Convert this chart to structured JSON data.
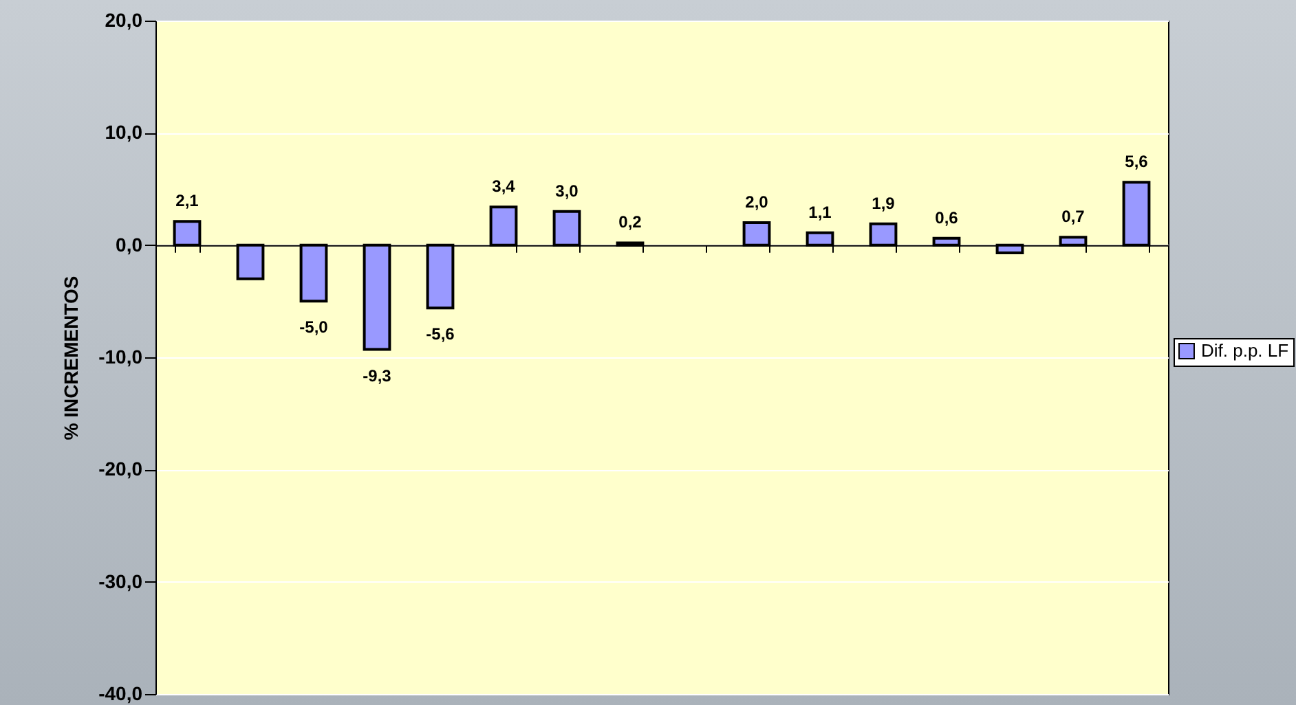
{
  "chart_data": {
    "type": "bar",
    "ylabel": "% INCREMENTOS",
    "categories": [
      null,
      null,
      null,
      null,
      null,
      null,
      null,
      null,
      null,
      null,
      null,
      null,
      null,
      null,
      null,
      null
    ],
    "series": [
      {
        "name": "Dif. p.p. LF",
        "color": "#9999ff",
        "values": [
          2.1,
          -3.0,
          -5.0,
          -9.3,
          -5.6,
          3.4,
          3.0,
          0.2,
          null,
          2.0,
          1.1,
          1.9,
          0.6,
          -0.7,
          0.7,
          5.6
        ],
        "value_labels": [
          "2,1",
          null,
          "-5,0",
          "-9,3",
          "-5,6",
          "3,4",
          "3,0",
          "0,2",
          null,
          "2,0",
          "1,1",
          "1,9",
          "0,6",
          null,
          "0,7",
          "5,6"
        ]
      }
    ],
    "ylim": [
      -40,
      20
    ],
    "yticks": [
      {
        "value": -40,
        "label": "-40,0"
      },
      {
        "value": -30,
        "label": "-30,0"
      },
      {
        "value": -20,
        "label": "-20,0"
      },
      {
        "value": -10,
        "label": "-10,0"
      },
      {
        "value": 0,
        "label": "0,0"
      },
      {
        "value": 10,
        "label": "10,0"
      },
      {
        "value": 20,
        "label": "20,0"
      }
    ],
    "grid": "y",
    "legend": "right"
  }
}
